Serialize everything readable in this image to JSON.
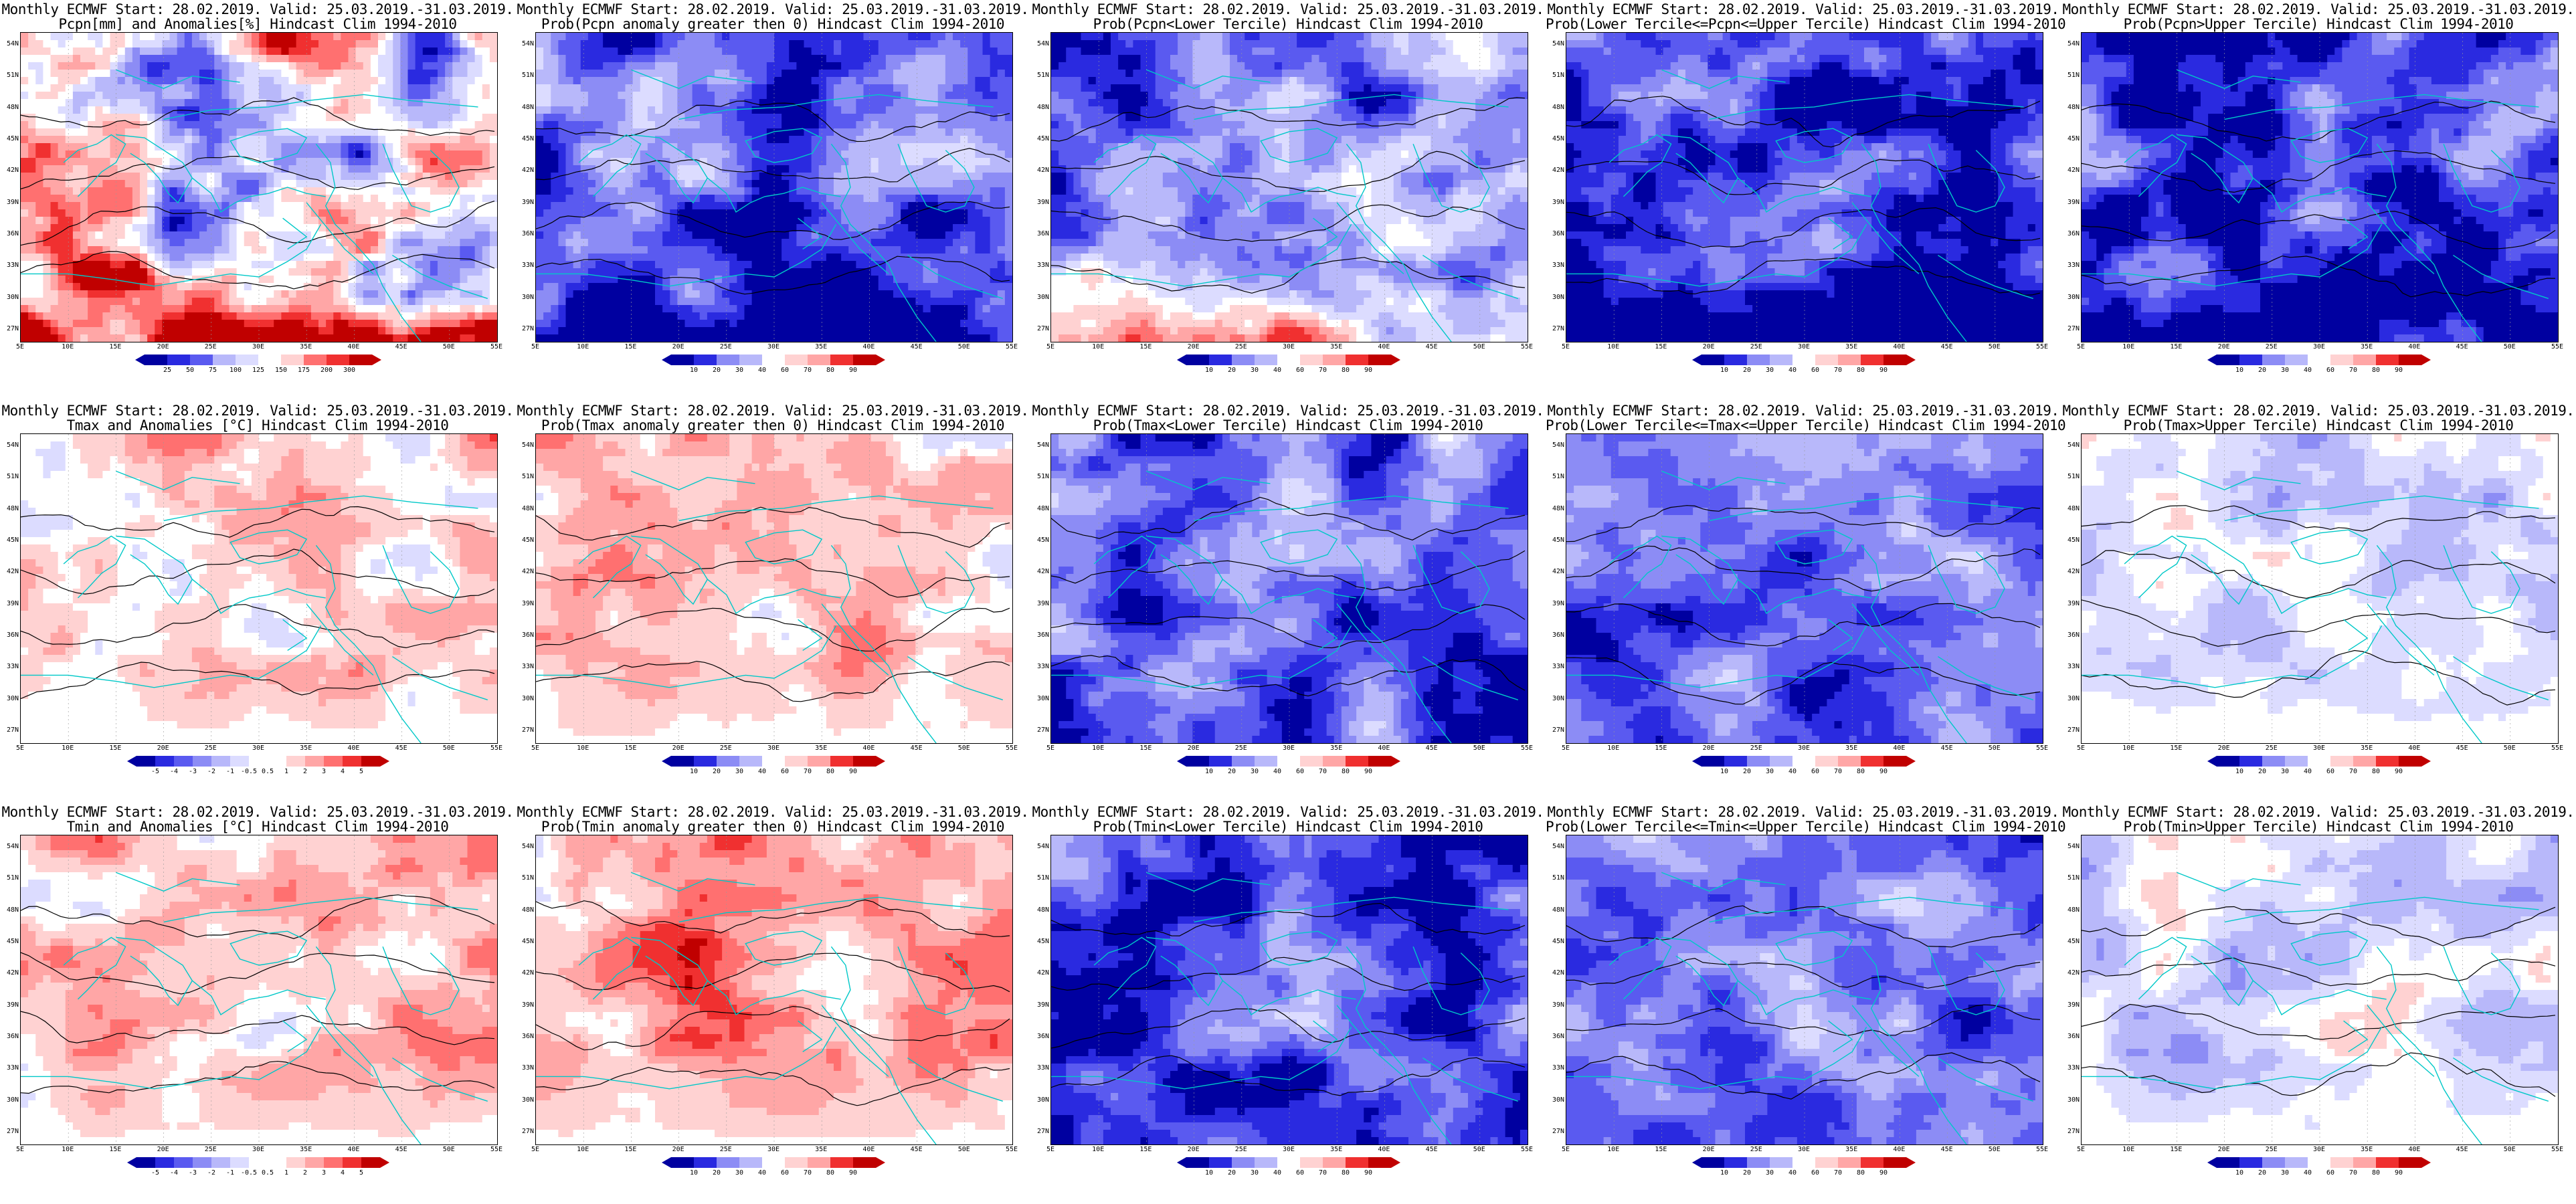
{
  "palette": {
    "prob": [
      "#0000a0",
      "#2a2ae0",
      "#5a5af0",
      "#8c8cf5",
      "#b8b8fa",
      "#dcdcff",
      "#ffffff",
      "#ffd2d2",
      "#ffa6a6",
      "#ff7070",
      "#f03030",
      "#c00000"
    ],
    "anom": [
      "#0000a0",
      "#2a2ae0",
      "#5a5af0",
      "#8c8cf5",
      "#b8b8fa",
      "#dcdcff",
      "#ffffff",
      "#ffd2d2",
      "#ffa6a6",
      "#ff7070",
      "#f03030",
      "#c00000"
    ],
    "coast": "#00c8c8",
    "contour": "#000000"
  },
  "lat_labels": [
    "54N",
    "51N",
    "48N",
    "45N",
    "42N",
    "39N",
    "36N",
    "33N",
    "30N",
    "27N"
  ],
  "lon_labels": [
    "5E",
    "10E",
    "15E",
    "20E",
    "25E",
    "30E",
    "35E",
    "40E",
    "45E",
    "50E",
    "55E"
  ],
  "panels": [
    {
      "title1": "Monthly ECMWF Start: 28.02.2019. Valid: 25.03.2019.-31.03.2019.",
      "title2": "Pcpn[mm] and Anomalies[%] Hindcast Clim 1994-2010",
      "ticks": [
        "25",
        "50",
        "75",
        "100",
        "125",
        "150",
        "175",
        "200",
        "300"
      ],
      "scale": "anom",
      "bias": 0.05,
      "variance": 0.35,
      "southern": "red"
    },
    {
      "title1": "Monthly ECMWF Start: 28.02.2019. Valid: 25.03.2019.-31.03.2019.",
      "title2": "Prob(Pcpn anomaly greater then 0) Hindcast Clim 1994-2010",
      "ticks": [
        "10",
        "20",
        "30",
        "40",
        "60",
        "70",
        "80",
        "90"
      ],
      "scale": "prob",
      "bias": -0.25,
      "variance": 0.2,
      "southern": "blue"
    },
    {
      "title1": "Monthly ECMWF Start: 28.02.2019. Valid: 25.03.2019.-31.03.2019.",
      "title2": "Prob(Pcpn<Lower Tercile) Hindcast Clim 1994-2010",
      "ticks": [
        "10",
        "20",
        "30",
        "40",
        "60",
        "70",
        "80",
        "90"
      ],
      "scale": "prob",
      "bias": -0.2,
      "variance": 0.2,
      "southern": "red"
    },
    {
      "title1": "Monthly ECMWF Start: 28.02.2019. Valid: 25.03.2019.-31.03.2019.",
      "title2": "Prob(Lower Tercile<=Pcpn<=Upper Tercile) Hindcast Clim 1994-2010",
      "ticks": [
        "10",
        "20",
        "30",
        "40",
        "60",
        "70",
        "80",
        "90"
      ],
      "scale": "prob",
      "bias": -0.35,
      "variance": 0.2,
      "southern": "darkblue"
    },
    {
      "title1": "Monthly ECMWF Start: 28.02.2019. Valid: 25.03.2019.-31.03.2019.",
      "title2": "Prob(Pcpn>Upper Tercile) Hindcast Clim 1994-2010",
      "ticks": [
        "10",
        "20",
        "30",
        "40",
        "60",
        "70",
        "80",
        "90"
      ],
      "scale": "prob",
      "bias": -0.3,
      "variance": 0.2,
      "southern": "blue"
    },
    {
      "title1": "Monthly ECMWF Start: 28.02.2019. Valid: 25.03.2019.-31.03.2019.",
      "title2": "Tmax and Anomalies [°C] Hindcast Clim 1994-2010",
      "ticks": [
        "-5",
        "-4",
        "-3",
        "-2",
        "-1",
        "-0.5",
        "0.5",
        "1",
        "2",
        "3",
        "4",
        "5"
      ],
      "scale": "anom",
      "bias": 0.12,
      "variance": 0.15,
      "southern": "white"
    },
    {
      "title1": "Monthly ECMWF Start: 28.02.2019. Valid: 25.03.2019.-31.03.2019.",
      "title2": "Prob(Tmax anomaly greater then 0) Hindcast Clim 1994-2010",
      "ticks": [
        "10",
        "20",
        "30",
        "40",
        "60",
        "70",
        "80",
        "90"
      ],
      "scale": "prob",
      "bias": 0.12,
      "variance": 0.15,
      "southern": "white"
    },
    {
      "title1": "Monthly ECMWF Start: 28.02.2019. Valid: 25.03.2019.-31.03.2019.",
      "title2": "Prob(Tmax<Lower Tercile) Hindcast Clim 1994-2010",
      "ticks": [
        "10",
        "20",
        "30",
        "40",
        "60",
        "70",
        "80",
        "90"
      ],
      "scale": "prob",
      "bias": -0.28,
      "variance": 0.18,
      "southern": "lightblue"
    },
    {
      "title1": "Monthly ECMWF Start: 28.02.2019. Valid: 25.03.2019.-31.03.2019.",
      "title2": "Prob(Lower Tercile<=Tmax<=Upper Tercile) Hindcast Clim 1994-2010",
      "ticks": [
        "10",
        "20",
        "30",
        "40",
        "60",
        "70",
        "80",
        "90"
      ],
      "scale": "prob",
      "bias": -0.25,
      "variance": 0.15,
      "southern": "lightblue"
    },
    {
      "title1": "Monthly ECMWF Start: 28.02.2019. Valid: 25.03.2019.-31.03.2019.",
      "title2": "Prob(Tmax>Upper Tercile) Hindcast Clim 1994-2010",
      "ticks": [
        "10",
        "20",
        "30",
        "40",
        "60",
        "70",
        "80",
        "90"
      ],
      "scale": "prob",
      "bias": -0.05,
      "variance": 0.12,
      "southern": "white"
    },
    {
      "title1": "Monthly ECMWF Start: 28.02.2019. Valid: 25.03.2019.-31.03.2019.",
      "title2": "Tmin and Anomalies [°C] Hindcast Clim 1994-2010",
      "ticks": [
        "-5",
        "-4",
        "-3",
        "-2",
        "-1",
        "-0.5",
        "0.5",
        "1",
        "2",
        "3",
        "4",
        "5"
      ],
      "scale": "anom",
      "bias": 0.15,
      "variance": 0.15,
      "southern": "white"
    },
    {
      "title1": "Monthly ECMWF Start: 28.02.2019. Valid: 25.03.2019.-31.03.2019.",
      "title2": "Prob(Tmin anomaly greater then 0) Hindcast Clim 1994-2010",
      "ticks": [
        "10",
        "20",
        "30",
        "40",
        "60",
        "70",
        "80",
        "90"
      ],
      "scale": "prob",
      "bias": 0.2,
      "variance": 0.15,
      "southern": "white"
    },
    {
      "title1": "Monthly ECMWF Start: 28.02.2019. Valid: 25.03.2019.-31.03.2019.",
      "title2": "Prob(Tmin<Lower Tercile) Hindcast Clim 1994-2010",
      "ticks": [
        "10",
        "20",
        "30",
        "40",
        "60",
        "70",
        "80",
        "90"
      ],
      "scale": "prob",
      "bias": -0.3,
      "variance": 0.18,
      "southern": "lightblue"
    },
    {
      "title1": "Monthly ECMWF Start: 28.02.2019. Valid: 25.03.2019.-31.03.2019.",
      "title2": "Prob(Lower Tercile<=Tmin<=Upper Tercile) Hindcast Clim 1994-2010",
      "ticks": [
        "10",
        "20",
        "30",
        "40",
        "60",
        "70",
        "80",
        "90"
      ],
      "scale": "prob",
      "bias": -0.22,
      "variance": 0.15,
      "southern": "lightblue"
    },
    {
      "title1": "Monthly ECMWF Start: 28.02.2019. Valid: 25.03.2019.-31.03.2019.",
      "title2": "Prob(Tmin>Upper Tercile) Hindcast Clim 1994-2010",
      "ticks": [
        "10",
        "20",
        "30",
        "40",
        "60",
        "70",
        "80",
        "90"
      ],
      "scale": "prob",
      "bias": -0.05,
      "variance": 0.12,
      "southern": "white"
    }
  ]
}
